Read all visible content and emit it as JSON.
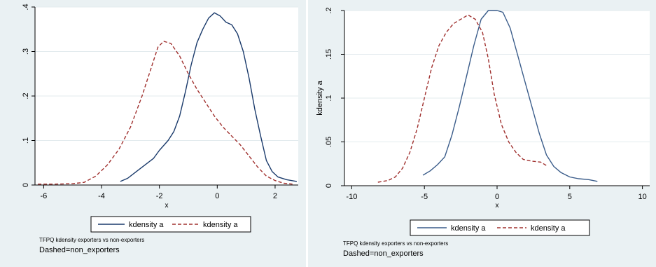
{
  "chart_data": [
    {
      "type": "line",
      "title": "",
      "xlabel": "x",
      "ylabel": "",
      "xlim": [
        -6.3,
        2.8
      ],
      "ylim": [
        0,
        0.4
      ],
      "xticks": [
        -6,
        -4,
        -2,
        0,
        2
      ],
      "xtick_labels": [
        "-6",
        "-4",
        "-2",
        "0",
        "2"
      ],
      "yticks": [
        0,
        0.1,
        0.2,
        0.3,
        0.4
      ],
      "ytick_labels": [
        "0",
        ".1",
        ".2",
        ".3",
        ".4"
      ],
      "grid": "horizontal",
      "legend_position": "bottom",
      "note_lines": [
        "TFPQ kdensity exporters vs non-exporters",
        "Dashed=non_exporters"
      ],
      "series": [
        {
          "name": "kdensity a",
          "style": "solid",
          "color": "#1a3a6b",
          "points": [
            [
              -3.35,
              0.008
            ],
            [
              -3.1,
              0.015
            ],
            [
              -2.8,
              0.03
            ],
            [
              -2.5,
              0.045
            ],
            [
              -2.2,
              0.06
            ],
            [
              -2.0,
              0.078
            ],
            [
              -1.7,
              0.1
            ],
            [
              -1.5,
              0.12
            ],
            [
              -1.3,
              0.155
            ],
            [
              -1.1,
              0.21
            ],
            [
              -0.9,
              0.27
            ],
            [
              -0.7,
              0.32
            ],
            [
              -0.5,
              0.35
            ],
            [
              -0.3,
              0.375
            ],
            [
              -0.1,
              0.387
            ],
            [
              0.1,
              0.38
            ],
            [
              0.3,
              0.366
            ],
            [
              0.5,
              0.36
            ],
            [
              0.7,
              0.34
            ],
            [
              0.9,
              0.3
            ],
            [
              1.1,
              0.24
            ],
            [
              1.3,
              0.17
            ],
            [
              1.5,
              0.11
            ],
            [
              1.7,
              0.055
            ],
            [
              1.9,
              0.03
            ],
            [
              2.1,
              0.018
            ],
            [
              2.4,
              0.012
            ],
            [
              2.75,
              0.008
            ]
          ]
        },
        {
          "name": "kdensity a",
          "style": "dashed",
          "color": "#a0302e",
          "points": [
            [
              -6.2,
              0.002
            ],
            [
              -5.6,
              0.002
            ],
            [
              -5.0,
              0.003
            ],
            [
              -4.6,
              0.006
            ],
            [
              -4.2,
              0.02
            ],
            [
              -3.8,
              0.045
            ],
            [
              -3.4,
              0.08
            ],
            [
              -3.0,
              0.13
            ],
            [
              -2.6,
              0.2
            ],
            [
              -2.3,
              0.26
            ],
            [
              -2.05,
              0.31
            ],
            [
              -1.85,
              0.323
            ],
            [
              -1.6,
              0.318
            ],
            [
              -1.3,
              0.29
            ],
            [
              -1.0,
              0.25
            ],
            [
              -0.7,
              0.215
            ],
            [
              -0.4,
              0.185
            ],
            [
              -0.1,
              0.155
            ],
            [
              0.2,
              0.13
            ],
            [
              0.5,
              0.11
            ],
            [
              0.8,
              0.09
            ],
            [
              1.1,
              0.065
            ],
            [
              1.4,
              0.04
            ],
            [
              1.7,
              0.02
            ],
            [
              2.0,
              0.01
            ],
            [
              2.3,
              0.004
            ],
            [
              2.6,
              0.002
            ]
          ]
        }
      ]
    },
    {
      "type": "line",
      "title": "",
      "xlabel": "x",
      "ylabel": "kdensity a",
      "xlim": [
        -10.5,
        10.5
      ],
      "ylim": [
        0,
        0.2
      ],
      "xticks": [
        -10,
        -5,
        0,
        5,
        10
      ],
      "xtick_labels": [
        "-10",
        "-5",
        "0",
        "5",
        "10"
      ],
      "yticks": [
        0,
        0.05,
        0.1,
        0.15,
        0.2
      ],
      "ytick_labels": [
        "0",
        ".05",
        ".1",
        ".15",
        ".2"
      ],
      "grid": "horizontal",
      "legend_position": "bottom",
      "note_lines": [
        "TFPQ kdensity exporters vs non-exporters",
        "Dashed=non_exporters"
      ],
      "series": [
        {
          "name": "kdensity a",
          "style": "solid",
          "color": "#3a5c8a",
          "points": [
            [
              -5.1,
              0.012
            ],
            [
              -4.6,
              0.017
            ],
            [
              -4.1,
              0.024
            ],
            [
              -3.6,
              0.033
            ],
            [
              -3.1,
              0.058
            ],
            [
              -2.6,
              0.09
            ],
            [
              -2.1,
              0.125
            ],
            [
              -1.6,
              0.16
            ],
            [
              -1.1,
              0.19
            ],
            [
              -0.6,
              0.2
            ],
            [
              -0.3,
              0.2
            ],
            [
              0.0,
              0.2
            ],
            [
              0.4,
              0.198
            ],
            [
              0.9,
              0.18
            ],
            [
              1.4,
              0.15
            ],
            [
              1.9,
              0.12
            ],
            [
              2.4,
              0.09
            ],
            [
              2.9,
              0.06
            ],
            [
              3.4,
              0.035
            ],
            [
              3.9,
              0.022
            ],
            [
              4.4,
              0.015
            ],
            [
              5.0,
              0.01
            ],
            [
              5.6,
              0.008
            ],
            [
              6.3,
              0.007
            ],
            [
              6.9,
              0.005
            ]
          ]
        },
        {
          "name": "kdensity a",
          "style": "dashed",
          "color": "#a0302e",
          "points": [
            [
              -8.2,
              0.004
            ],
            [
              -7.5,
              0.006
            ],
            [
              -7.0,
              0.01
            ],
            [
              -6.5,
              0.02
            ],
            [
              -6.0,
              0.038
            ],
            [
              -5.5,
              0.065
            ],
            [
              -5.0,
              0.1
            ],
            [
              -4.5,
              0.135
            ],
            [
              -4.0,
              0.16
            ],
            [
              -3.5,
              0.175
            ],
            [
              -3.0,
              0.185
            ],
            [
              -2.5,
              0.19
            ],
            [
              -2.0,
              0.195
            ],
            [
              -1.5,
              0.19
            ],
            [
              -1.0,
              0.175
            ],
            [
              -0.6,
              0.145
            ],
            [
              -0.2,
              0.105
            ],
            [
              0.3,
              0.07
            ],
            [
              0.8,
              0.05
            ],
            [
              1.3,
              0.038
            ],
            [
              1.8,
              0.03
            ],
            [
              2.4,
              0.028
            ],
            [
              3.0,
              0.027
            ],
            [
              3.5,
              0.022
            ]
          ]
        }
      ]
    }
  ]
}
